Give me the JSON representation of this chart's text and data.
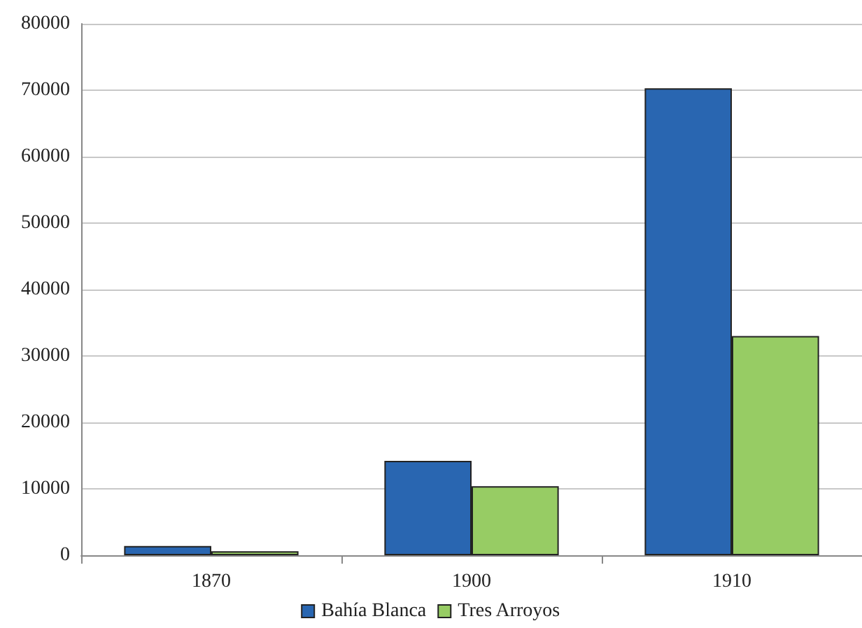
{
  "chart_data": {
    "type": "bar",
    "categories": [
      "1870",
      "1900",
      "1910"
    ],
    "series": [
      {
        "name": "Bahía Blanca",
        "color": "#2966b1",
        "values": [
          1400,
          14200,
          70300
        ]
      },
      {
        "name": "Tres Arroyos",
        "color": "#97cc64",
        "values": [
          600,
          10400,
          33000
        ]
      }
    ],
    "ylim": [
      0,
      80000
    ],
    "yticks": [
      0,
      10000,
      20000,
      30000,
      40000,
      50000,
      60000,
      70000,
      80000
    ],
    "grid": "y",
    "legend": "bottom"
  }
}
